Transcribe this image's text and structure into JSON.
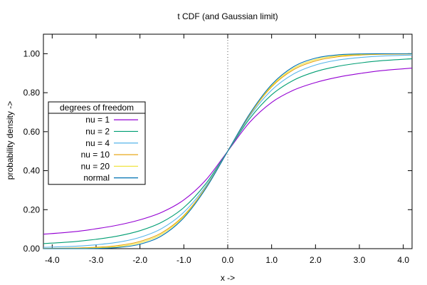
{
  "chart_data": {
    "type": "line",
    "title": "t CDF (and Gaussian limit)",
    "xlabel": "x ->",
    "ylabel": "probability density ->",
    "xlim": [
      -4.2,
      4.2
    ],
    "ylim": [
      0.0,
      1.1
    ],
    "x_ticks": [
      -4.0,
      -3.0,
      -2.0,
      -1.0,
      0.0,
      1.0,
      2.0,
      3.0,
      4.0
    ],
    "x_tick_labels": [
      "-4.0",
      "-3.0",
      "-2.0",
      "-1.0",
      "0.0",
      "1.0",
      "2.0",
      "3.0",
      "4.0"
    ],
    "y_ticks": [
      0.0,
      0.2,
      0.4,
      0.6,
      0.8,
      1.0
    ],
    "y_tick_labels": [
      "0.00",
      "0.20",
      "0.40",
      "0.60",
      "0.80",
      "1.00"
    ],
    "grid": false,
    "vertical_reference_line": {
      "x": 0.0,
      "style": "dotted"
    },
    "legend": {
      "title": "degrees of freedom",
      "placement": "left-middle",
      "entries": [
        "nu = 1",
        "nu = 2",
        "nu = 4",
        "nu = 10",
        "nu = 20",
        "normal"
      ]
    },
    "series": [
      {
        "name": "nu = 1",
        "color": "#9400d3",
        "x": [
          -4.2,
          -3.5,
          -3.0,
          -2.5,
          -2.0,
          -1.5,
          -1.0,
          -0.5,
          0.0,
          0.5,
          1.0,
          1.5,
          2.0,
          2.5,
          3.0,
          3.5,
          4.2
        ],
        "y": [
          0.074,
          0.087,
          0.102,
          0.121,
          0.148,
          0.187,
          0.25,
          0.352,
          0.5,
          0.648,
          0.75,
          0.813,
          0.852,
          0.879,
          0.898,
          0.913,
          0.926
        ]
      },
      {
        "name": "nu = 2",
        "color": "#009e73",
        "x": [
          -4.2,
          -3.5,
          -3.0,
          -2.5,
          -2.0,
          -1.5,
          -1.0,
          -0.5,
          0.0,
          0.5,
          1.0,
          1.5,
          2.0,
          2.5,
          3.0,
          3.5,
          4.2
        ],
        "y": [
          0.026,
          0.036,
          0.048,
          0.065,
          0.092,
          0.136,
          0.211,
          0.333,
          0.5,
          0.667,
          0.789,
          0.864,
          0.908,
          0.935,
          0.952,
          0.964,
          0.974
        ]
      },
      {
        "name": "nu = 4",
        "color": "#56b4e9",
        "x": [
          -4.2,
          -3.5,
          -3.0,
          -2.5,
          -2.0,
          -1.5,
          -1.0,
          -0.5,
          0.0,
          0.5,
          1.0,
          1.5,
          2.0,
          2.5,
          3.0,
          3.5,
          4.2
        ],
        "y": [
          0.007,
          0.012,
          0.02,
          0.033,
          0.058,
          0.104,
          0.187,
          0.321,
          0.5,
          0.679,
          0.813,
          0.896,
          0.942,
          0.967,
          0.98,
          0.988,
          0.993
        ]
      },
      {
        "name": "nu = 10",
        "color": "#e69f00",
        "x": [
          -4.2,
          -3.5,
          -3.0,
          -2.5,
          -2.0,
          -1.5,
          -1.0,
          -0.5,
          0.0,
          0.5,
          1.0,
          1.5,
          2.0,
          2.5,
          3.0,
          3.5,
          4.2
        ],
        "y": [
          0.001,
          0.003,
          0.007,
          0.016,
          0.037,
          0.082,
          0.17,
          0.314,
          0.5,
          0.686,
          0.83,
          0.918,
          0.963,
          0.984,
          0.993,
          0.997,
          0.999
        ]
      },
      {
        "name": "nu = 20",
        "color": "#f0e442",
        "x": [
          -4.2,
          -3.5,
          -3.0,
          -2.5,
          -2.0,
          -1.5,
          -1.0,
          -0.5,
          0.0,
          0.5,
          1.0,
          1.5,
          2.0,
          2.5,
          3.0,
          3.5,
          4.2
        ],
        "y": [
          0.0002,
          0.001,
          0.004,
          0.011,
          0.03,
          0.075,
          0.165,
          0.311,
          0.5,
          0.689,
          0.835,
          0.925,
          0.97,
          0.989,
          0.996,
          0.999,
          0.9998
        ]
      },
      {
        "name": "normal",
        "color": "#0072b2",
        "x": [
          -4.2,
          -3.5,
          -3.0,
          -2.5,
          -2.0,
          -1.5,
          -1.0,
          -0.5,
          0.0,
          0.5,
          1.0,
          1.5,
          2.0,
          2.5,
          3.0,
          3.5,
          4.2
        ],
        "y": [
          1e-05,
          0.0002,
          0.0013,
          0.0062,
          0.0228,
          0.0668,
          0.1587,
          0.3085,
          0.5,
          0.6915,
          0.8413,
          0.9332,
          0.9772,
          0.9938,
          0.9987,
          0.9998,
          0.99999
        ]
      }
    ]
  }
}
